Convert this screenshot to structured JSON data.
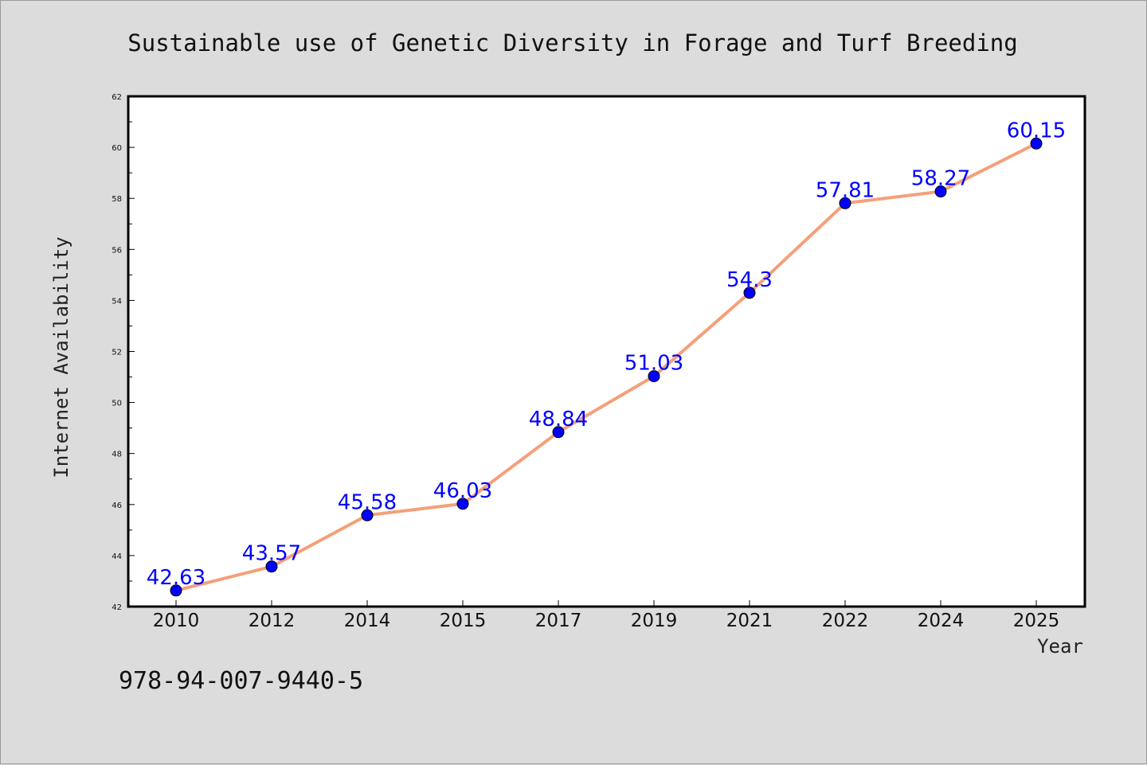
{
  "chart_data": {
    "type": "line",
    "title": "Sustainable use of Genetic Diversity in Forage and Turf Breeding",
    "xlabel": "Year",
    "ylabel": "Internet Availability",
    "categories": [
      "2010",
      "2012",
      "2014",
      "2015",
      "2017",
      "2019",
      "2021",
      "2022",
      "2024",
      "2025"
    ],
    "series": [
      {
        "values": [
          42.63,
          43.57,
          45.58,
          46.03,
          48.84,
          51.03,
          54.3,
          57.81,
          58.27,
          60.15
        ],
        "labels": [
          "42.63",
          "43.57",
          "45.58",
          "46.03",
          "48.84",
          "51.03",
          "54.3",
          "57.81",
          "58.27",
          "60.15"
        ],
        "line_color": "#f4a07a",
        "marker_color": "#0000ff"
      }
    ],
    "ylim": [
      42,
      62
    ],
    "yticks": [
      "42",
      "44",
      "46",
      "48",
      "50",
      "52",
      "54",
      "56",
      "58",
      "60",
      "62"
    ],
    "grid": false,
    "legend": "none",
    "footnote": "978-94-007-9440-5"
  }
}
